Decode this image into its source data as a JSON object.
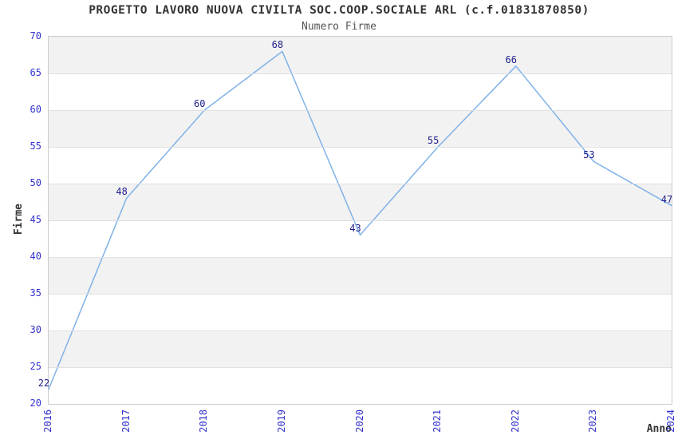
{
  "title": "PROGETTO LAVORO NUOVA CIVILTA SOC.COOP.SOCIALE ARL (c.f.01831870850)",
  "subtitle": "Numero Firme",
  "chart_data": {
    "type": "line",
    "x": [
      2016,
      2017,
      2018,
      2019,
      2020,
      2021,
      2022,
      2023,
      2024
    ],
    "values": [
      22,
      48,
      60,
      68,
      43,
      55,
      66,
      53,
      47
    ],
    "title": "PROGETTO LAVORO NUOVA CIVILTA SOC.COOP.SOCIALE ARL (c.f.01831870850)",
    "subtitle": "Numero Firme",
    "xlabel": "Anno",
    "ylabel": "Firme",
    "ylim": [
      20,
      70
    ],
    "ytick_step": 5,
    "yticks": [
      20,
      25,
      30,
      35,
      40,
      45,
      50,
      55,
      60,
      65,
      70
    ],
    "grid": "horizontal-bands-alternating",
    "legend": "none",
    "colors": {
      "line": "#7fb2e8",
      "point_label": "#1e1e8c",
      "tick_label": "#3232cd",
      "band": "#f2f2f2",
      "gridline": "#e0e0e0",
      "plot_border": "#cccccc",
      "title": "#333333",
      "subtitle": "#555555",
      "axis_label": "#333333"
    }
  }
}
